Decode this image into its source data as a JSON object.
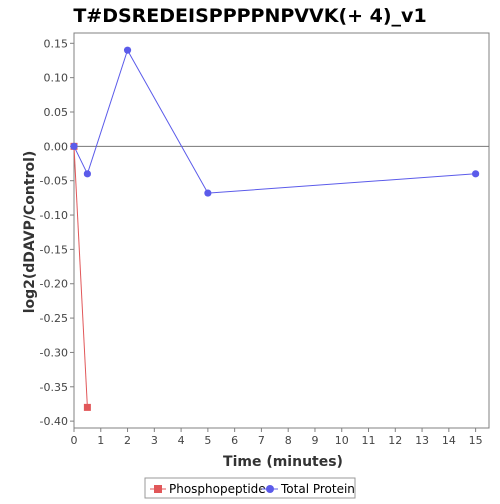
{
  "chart_data": {
    "type": "line",
    "title": "T#DSREDEISPPPPNPVVK(+ 4)_v1",
    "xlabel": "Time (minutes)",
    "ylabel": "log2(dDAVP/Control)",
    "xlim": [
      0,
      15.5
    ],
    "ylim": [
      -0.41,
      0.165
    ],
    "xticks": [
      0,
      1,
      2,
      3,
      4,
      5,
      6,
      7,
      8,
      9,
      10,
      11,
      12,
      13,
      14,
      15
    ],
    "yticks": [
      -0.4,
      -0.35,
      -0.3,
      -0.25,
      -0.2,
      -0.15,
      -0.1,
      -0.05,
      0.0,
      0.05,
      0.1,
      0.15
    ],
    "ytick_labels": [
      "-0.40",
      "-0.35",
      "-0.30",
      "-0.25",
      "-0.20",
      "-0.15",
      "-0.10",
      "-0.05",
      "0.00",
      "0.05",
      "0.10",
      "0.15"
    ],
    "zero_line": true,
    "grid": false,
    "legend_position": "bottom-center",
    "series": [
      {
        "name": "Phosphopeptide",
        "color": "#e15759",
        "marker": "square",
        "x": [
          0,
          0.5
        ],
        "y": [
          0.0,
          -0.38
        ]
      },
      {
        "name": "Total Protein",
        "color": "#5b5bea",
        "marker": "circle",
        "x": [
          0,
          0.5,
          2,
          5,
          15
        ],
        "y": [
          0.0,
          -0.04,
          0.14,
          -0.068,
          -0.04
        ]
      }
    ]
  }
}
